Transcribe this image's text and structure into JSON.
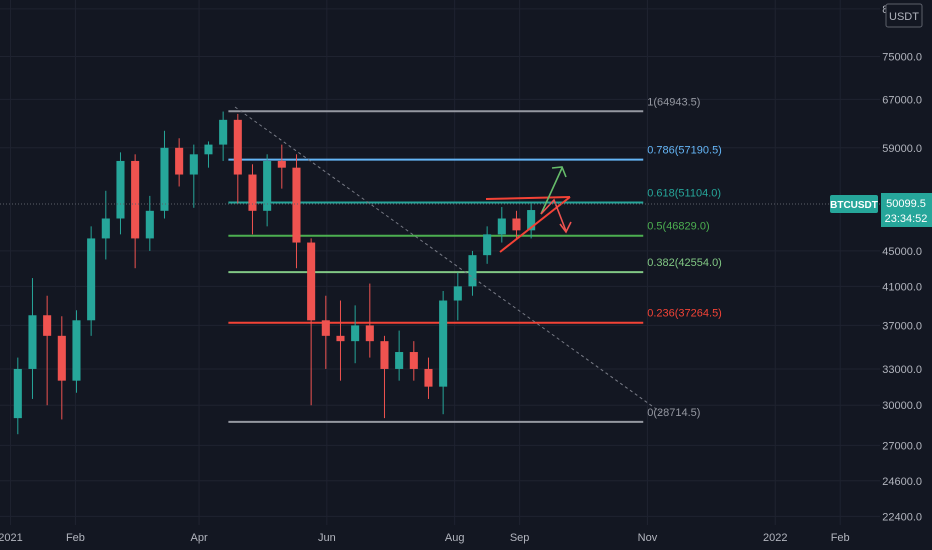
{
  "symbol": "BTCUSDT",
  "currency": "USDT",
  "last_price": "50099.5",
  "countdown": "23:34:52",
  "colors": {
    "background": "#131722",
    "grid": "#1f2330",
    "axis_text": "#b2b5be",
    "up": "#26a69a",
    "down": "#ef5350",
    "price_tag": "#26a69a"
  },
  "chart_data": {
    "type": "candlestick",
    "y_scale": "log",
    "ylim": [
      21900,
      87000
    ],
    "y_ticks": [
      {
        "value": 85000,
        "label": "85000.0"
      },
      {
        "value": 75000,
        "label": "75000.0"
      },
      {
        "value": 67000,
        "label": "67000.0"
      },
      {
        "value": 59000,
        "label": "59000.0"
      },
      {
        "value": 45000,
        "label": "45000.0"
      },
      {
        "value": 41000,
        "label": "41000.0"
      },
      {
        "value": 37000,
        "label": "37000.0"
      },
      {
        "value": 33000,
        "label": "33000.0"
      },
      {
        "value": 30000,
        "label": "30000.0"
      },
      {
        "value": 27000,
        "label": "27000.0"
      },
      {
        "value": 24600,
        "label": "24600.0"
      },
      {
        "value": 22400,
        "label": "22400.0"
      }
    ],
    "x_ticks": [
      {
        "label": "2021",
        "day": 0
      },
      {
        "label": "Feb",
        "day": 31
      },
      {
        "label": "Apr",
        "day": 90
      },
      {
        "label": "Jun",
        "day": 151
      },
      {
        "label": "Aug",
        "day": 212
      },
      {
        "label": "Sep",
        "day": 243
      },
      {
        "label": "Nov",
        "day": 304
      },
      {
        "label": "2022",
        "day": 365
      },
      {
        "label": "Feb",
        "day": 396
      }
    ],
    "x_range_days": [
      -5,
      415
    ],
    "fib_levels": [
      {
        "ratio": "1",
        "price": 64943.5,
        "label": "1(64943.5)",
        "color": "#9598a1"
      },
      {
        "ratio": "0.786",
        "price": 57190.5,
        "label": "0.786(57190.5)",
        "color": "#64b5f6"
      },
      {
        "ratio": "0.618",
        "price": 51104.0,
        "label": "0.618(51104.0)",
        "color": "#26a69a"
      },
      {
        "ratio": "0.5",
        "price": 46829.0,
        "label": "0.5(46829.0)",
        "color": "#4caf50"
      },
      {
        "ratio": "0.382",
        "price": 42554.0,
        "label": "0.382(42554.0)",
        "color": "#81c784"
      },
      {
        "ratio": "0.236",
        "price": 37264.5,
        "label": "0.236(37264.5)",
        "color": "#f44336"
      },
      {
        "ratio": "0",
        "price": 28714.5,
        "label": "0(28714.5)",
        "color": "#9598a1"
      }
    ],
    "fib_day_range": [
      104,
      302
    ],
    "candles_weekly": [
      {
        "day": 0,
        "o": 29000,
        "h": 34000,
        "l": 27800,
        "c": 33000
      },
      {
        "day": 7,
        "o": 33000,
        "h": 41900,
        "l": 30500,
        "c": 38000
      },
      {
        "day": 14,
        "o": 38000,
        "h": 40000,
        "l": 30000,
        "c": 36000
      },
      {
        "day": 21,
        "o": 36000,
        "h": 37900,
        "l": 28900,
        "c": 32000
      },
      {
        "day": 28,
        "o": 32000,
        "h": 38500,
        "l": 31000,
        "c": 37500
      },
      {
        "day": 35,
        "o": 37500,
        "h": 48000,
        "l": 36000,
        "c": 46500
      },
      {
        "day": 42,
        "o": 46500,
        "h": 52700,
        "l": 44000,
        "c": 49000
      },
      {
        "day": 49,
        "o": 49000,
        "h": 58300,
        "l": 47000,
        "c": 57000
      },
      {
        "day": 56,
        "o": 57000,
        "h": 58000,
        "l": 43000,
        "c": 46500
      },
      {
        "day": 63,
        "o": 46500,
        "h": 52000,
        "l": 45000,
        "c": 50000
      },
      {
        "day": 70,
        "o": 50000,
        "h": 61700,
        "l": 49000,
        "c": 59000
      },
      {
        "day": 77,
        "o": 59000,
        "h": 60500,
        "l": 53300,
        "c": 55000
      },
      {
        "day": 84,
        "o": 55000,
        "h": 59500,
        "l": 50400,
        "c": 58000
      },
      {
        "day": 91,
        "o": 58000,
        "h": 60000,
        "l": 56000,
        "c": 59500
      },
      {
        "day": 98,
        "o": 59500,
        "h": 64900,
        "l": 57000,
        "c": 63500
      },
      {
        "day": 105,
        "o": 63500,
        "h": 64500,
        "l": 51000,
        "c": 55000
      },
      {
        "day": 112,
        "o": 55000,
        "h": 56500,
        "l": 47000,
        "c": 50000
      },
      {
        "day": 119,
        "o": 50000,
        "h": 58000,
        "l": 48000,
        "c": 57000
      },
      {
        "day": 126,
        "o": 57000,
        "h": 59500,
        "l": 53000,
        "c": 56000
      },
      {
        "day": 133,
        "o": 56000,
        "h": 58000,
        "l": 43000,
        "c": 46000
      },
      {
        "day": 140,
        "o": 46000,
        "h": 46500,
        "l": 30000,
        "c": 37500
      },
      {
        "day": 147,
        "o": 37500,
        "h": 40000,
        "l": 33000,
        "c": 36000
      },
      {
        "day": 154,
        "o": 36000,
        "h": 39500,
        "l": 32000,
        "c": 35500
      },
      {
        "day": 161,
        "o": 35500,
        "h": 39000,
        "l": 33500,
        "c": 37000
      },
      {
        "day": 168,
        "o": 37000,
        "h": 41300,
        "l": 34000,
        "c": 35500
      },
      {
        "day": 175,
        "o": 35500,
        "h": 36000,
        "l": 29000,
        "c": 33000
      },
      {
        "day": 182,
        "o": 33000,
        "h": 36500,
        "l": 32000,
        "c": 34500
      },
      {
        "day": 189,
        "o": 34500,
        "h": 35500,
        "l": 32000,
        "c": 33000
      },
      {
        "day": 196,
        "o": 33000,
        "h": 34000,
        "l": 30500,
        "c": 31500
      },
      {
        "day": 203,
        "o": 31500,
        "h": 40500,
        "l": 29300,
        "c": 39500
      },
      {
        "day": 210,
        "o": 39500,
        "h": 42500,
        "l": 37500,
        "c": 41000
      },
      {
        "day": 217,
        "o": 41000,
        "h": 45000,
        "l": 40000,
        "c": 44500
      },
      {
        "day": 224,
        "o": 44500,
        "h": 48000,
        "l": 43500,
        "c": 47000
      },
      {
        "day": 231,
        "o": 47000,
        "h": 50500,
        "l": 46000,
        "c": 49000
      },
      {
        "day": 238,
        "o": 49000,
        "h": 50000,
        "l": 46500,
        "c": 47500
      },
      {
        "day": 245,
        "o": 47500,
        "h": 51000,
        "l": 46500,
        "c": 50100
      }
    ]
  }
}
